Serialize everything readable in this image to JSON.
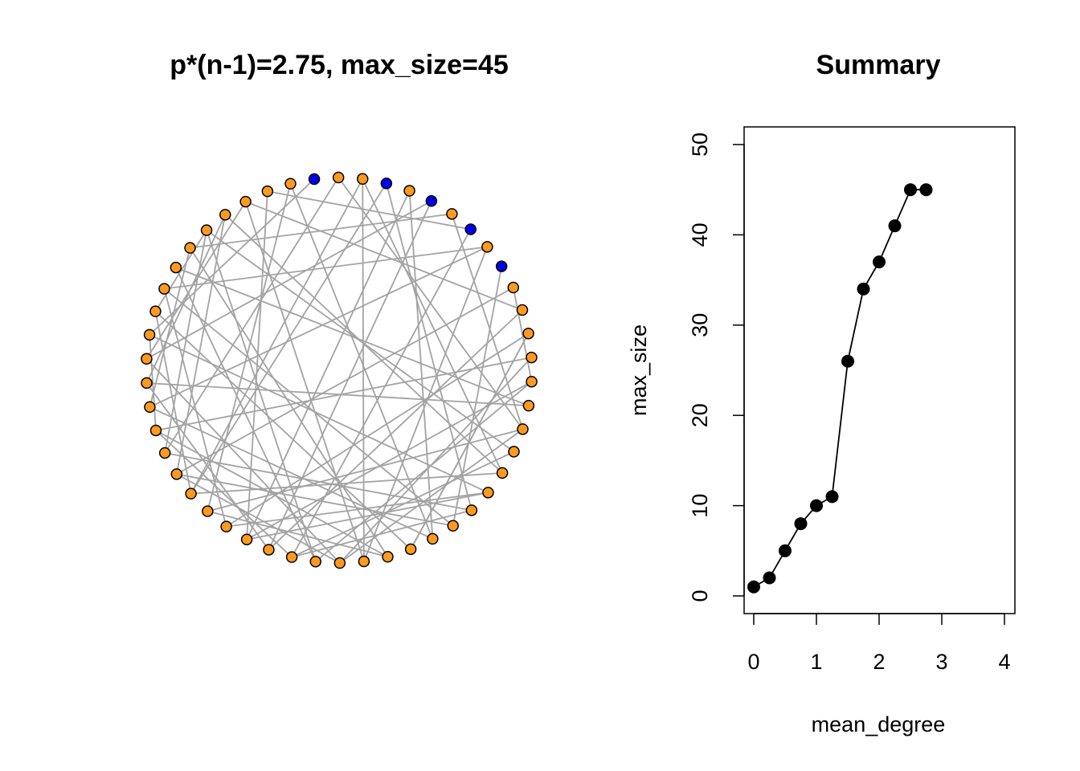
{
  "chart_data": [
    {
      "type": "network",
      "title": "p*(n-1)=2.75, max_size=45",
      "node_count": 50,
      "highlighted_nodes": [
        0,
        3,
        5,
        7,
        9
      ],
      "colors": {
        "node_default": "#FF9A1F",
        "node_highlight": "#0000EE",
        "edge": "#A3A3A3",
        "node_border": "#000000"
      },
      "edges": [
        [
          0,
          40
        ],
        [
          1,
          16
        ],
        [
          1,
          35
        ],
        [
          2,
          18
        ],
        [
          2,
          33
        ],
        [
          2,
          25
        ],
        [
          3,
          20
        ],
        [
          4,
          22
        ],
        [
          4,
          30
        ],
        [
          5,
          39
        ],
        [
          6,
          16
        ],
        [
          6,
          44
        ],
        [
          7,
          28
        ],
        [
          7,
          48
        ],
        [
          8,
          25
        ],
        [
          8,
          37
        ],
        [
          9,
          21
        ],
        [
          10,
          14
        ],
        [
          10,
          34
        ],
        [
          11,
          29
        ],
        [
          11,
          47
        ],
        [
          12,
          31
        ],
        [
          12,
          23
        ],
        [
          13,
          36
        ],
        [
          13,
          26
        ],
        [
          14,
          27
        ],
        [
          15,
          38
        ],
        [
          15,
          43
        ],
        [
          16,
          32
        ],
        [
          17,
          45
        ],
        [
          17,
          28
        ],
        [
          18,
          46
        ],
        [
          18,
          33
        ],
        [
          19,
          40
        ],
        [
          19,
          30
        ],
        [
          20,
          35
        ],
        [
          21,
          42
        ],
        [
          22,
          49
        ],
        [
          22,
          37
        ],
        [
          23,
          41
        ],
        [
          24,
          44
        ],
        [
          24,
          32
        ],
        [
          25,
          47
        ],
        [
          26,
          39
        ],
        [
          26,
          34
        ],
        [
          27,
          45
        ],
        [
          27,
          43
        ],
        [
          28,
          36
        ],
        [
          29,
          38
        ],
        [
          30,
          48
        ],
        [
          31,
          42
        ],
        [
          32,
          49
        ],
        [
          33,
          41
        ],
        [
          34,
          46
        ],
        [
          35,
          45
        ],
        [
          36,
          40
        ],
        [
          37,
          44
        ],
        [
          38,
          46
        ],
        [
          39,
          47
        ],
        [
          41,
          45
        ],
        [
          14,
          30
        ],
        [
          21,
          34
        ],
        [
          28,
          20
        ],
        [
          33,
          3
        ],
        [
          42,
          8
        ],
        [
          16,
          26
        ],
        [
          23,
          12
        ],
        [
          29,
          5
        ],
        [
          31,
          19
        ],
        [
          24,
          36
        ]
      ]
    },
    {
      "type": "line",
      "title": "Summary",
      "xlabel": "mean_degree",
      "ylabel": "max_size",
      "xlim": [
        0,
        4
      ],
      "ylim": [
        0,
        50
      ],
      "x_ticks": [
        "0",
        "1",
        "2",
        "3",
        "4"
      ],
      "y_ticks": [
        "0",
        "10",
        "20",
        "30",
        "40",
        "50"
      ],
      "x": [
        0,
        0.25,
        0.5,
        0.75,
        1.0,
        1.25,
        1.5,
        1.75,
        2.0,
        2.25,
        2.5,
        2.75
      ],
      "y": [
        1,
        2,
        5,
        8,
        10,
        11,
        26,
        34,
        37,
        41,
        45,
        45
      ],
      "colors": {
        "line": "#000000",
        "point": "#000000"
      }
    }
  ]
}
